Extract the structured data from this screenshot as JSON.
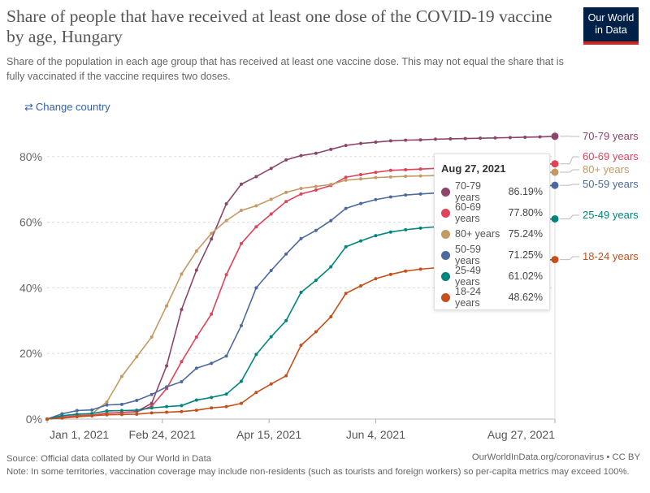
{
  "header": {
    "title": "Share of people that have received at least one dose of the COVID-19 vaccine by age, Hungary",
    "subtitle": "Share of the population in each age group that has received at least one vaccine dose. This may not equal the share that is fully vaccinated if the vaccine requires two doses.",
    "logo_line1": "Our World",
    "logo_line2": "in Data",
    "change_country": "Change country",
    "change_icon": "swap-arrows-icon"
  },
  "chart_data": {
    "type": "line",
    "title": "Share of people that have received at least one dose of the COVID-19 vaccine by age, Hungary",
    "xlabel": "",
    "ylabel": "",
    "x_unit": "days since Jan 1, 2021",
    "x": [
      0,
      7,
      14,
      21,
      28,
      35,
      42,
      49,
      56,
      63,
      70,
      77,
      84,
      91,
      98,
      105,
      112,
      119,
      126,
      133,
      140,
      147,
      154,
      161,
      168,
      175,
      182,
      189,
      196,
      203,
      210,
      217,
      224,
      231,
      238
    ],
    "xlim": [
      0,
      238
    ],
    "ylim": [
      0,
      90
    ],
    "x_ticks": [
      {
        "value": 0,
        "label": "Jan 1, 2021"
      },
      {
        "value": 54,
        "label": "Feb 24, 2021"
      },
      {
        "value": 104,
        "label": "Apr 15, 2021"
      },
      {
        "value": 154,
        "label": "Jun 4, 2021"
      },
      {
        "value": 238,
        "label": "Aug 27, 2021"
      }
    ],
    "y_ticks": [
      {
        "value": 0,
        "label": "0%"
      },
      {
        "value": 20,
        "label": "20%"
      },
      {
        "value": 40,
        "label": "40%"
      },
      {
        "value": 60,
        "label": "60%"
      },
      {
        "value": 80,
        "label": "80%"
      }
    ],
    "grid": true,
    "legend": "right (line end labels)",
    "series": [
      {
        "name": "70-79 years",
        "color": "#8c4569",
        "values": [
          0,
          0.5,
          1,
          1.2,
          1.8,
          2,
          2.3,
          4.8,
          16.2,
          33.4,
          45.4,
          54.9,
          65.6,
          71.6,
          73.9,
          76.4,
          79,
          80.3,
          81,
          82.2,
          83.4,
          84,
          84.4,
          84.8,
          85,
          85.1,
          85.3,
          85.4,
          85.5,
          85.6,
          85.7,
          85.8,
          85.9,
          86.0,
          86.19
        ]
      },
      {
        "name": "60-69 years",
        "color": "#e0435a",
        "values": [
          0,
          0.5,
          1,
          1.2,
          1.8,
          2,
          2.2,
          3.9,
          9.3,
          17.5,
          25,
          32,
          44,
          53.5,
          58.6,
          62.5,
          66.3,
          68.6,
          69.8,
          71.2,
          73.7,
          74.5,
          75.2,
          75.8,
          76,
          76.2,
          76.4,
          76.6,
          76.8,
          77,
          77.2,
          77.4,
          77.5,
          77.6,
          77.8
        ]
      },
      {
        "name": "80+ years",
        "color": "#c49a64",
        "values": [
          0,
          1,
          1.4,
          1.6,
          5.2,
          13,
          19,
          25,
          34.5,
          44.2,
          51.2,
          56.6,
          60.5,
          63.6,
          65,
          67,
          69.1,
          70.3,
          70.9,
          71.5,
          72.8,
          73.2,
          73.6,
          73.8,
          74,
          74.1,
          74.2,
          74.3,
          74.4,
          74.5,
          74.6,
          74.8,
          74.9,
          75.1,
          75.24
        ]
      },
      {
        "name": "50-59 years",
        "color": "#4c6a9c",
        "values": [
          0,
          1.6,
          2.6,
          2.8,
          4.3,
          4.5,
          5.7,
          7.5,
          9.8,
          11.4,
          15.5,
          17,
          19.2,
          28.5,
          40,
          45.3,
          50.3,
          55,
          57.5,
          60.5,
          64.2,
          65.7,
          66.9,
          67.7,
          68.3,
          68.6,
          68.9,
          69.2,
          69.5,
          69.8,
          70.1,
          70.4,
          70.7,
          71.0,
          71.25
        ]
      },
      {
        "name": "25-49 years",
        "color": "#00847e",
        "values": [
          0,
          1,
          1.5,
          1.7,
          2.5,
          2.6,
          2.7,
          3.4,
          3.8,
          4.1,
          5.8,
          6.6,
          7.6,
          11.5,
          19.7,
          25.1,
          30,
          38.6,
          42.3,
          46.4,
          52.5,
          54.3,
          55.9,
          57,
          57.7,
          58.2,
          58.6,
          59,
          59.3,
          59.6,
          59.9,
          60.2,
          60.5,
          60.8,
          61.02
        ]
      },
      {
        "name": "18-24 years",
        "color": "#c4501b",
        "values": [
          0,
          0.3,
          0.7,
          1,
          1.3,
          1.4,
          1.5,
          1.9,
          2.1,
          2.3,
          2.7,
          3.4,
          3.8,
          4.8,
          8.1,
          10.7,
          13.2,
          22.5,
          26.6,
          31.2,
          38.3,
          40.6,
          42.8,
          44.1,
          45.1,
          45.7,
          46.1,
          46.5,
          46.9,
          47.3,
          47.6,
          47.9,
          48.2,
          48.4,
          48.62
        ]
      }
    ],
    "tooltip": {
      "date": "Aug 27, 2021",
      "rows": [
        {
          "name": "70-79 years",
          "value": "86.19%"
        },
        {
          "name": "60-69 years",
          "value": "77.80%"
        },
        {
          "name": "80+ years",
          "value": "75.24%"
        },
        {
          "name": "50-59 years",
          "value": "71.25%"
        },
        {
          "name": "25-49 years",
          "value": "61.02%"
        },
        {
          "name": "18-24 years",
          "value": "48.62%"
        }
      ]
    }
  },
  "footer": {
    "source": "Source: Official data collated by Our World in Data",
    "note": "Note: In some territories, vaccination coverage may include non-residents (such as tourists and foreign workers) so per-capita metrics may exceed 100%.",
    "url": "OurWorldInData.org/coronavirus • CC BY"
  }
}
